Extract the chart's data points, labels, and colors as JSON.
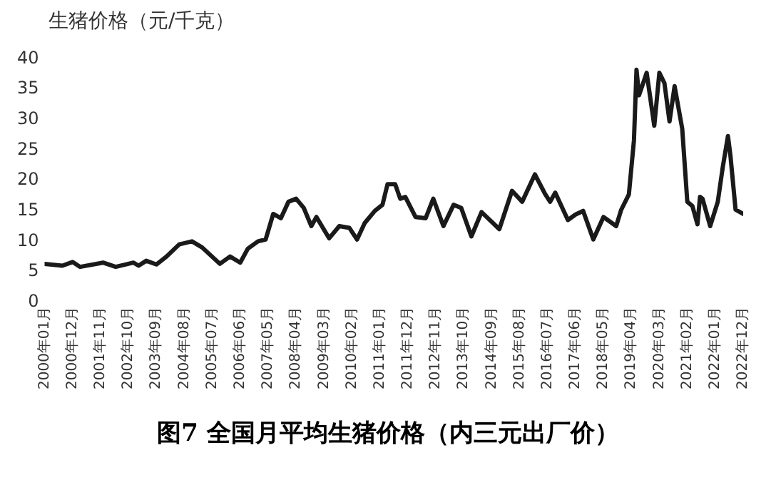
{
  "chart_data": {
    "type": "line",
    "title": "图7 全国月平均生猪价格（内三元出厂价）",
    "ylabel": "生猪价格（元/千克）",
    "x": [
      "2000-01",
      "2000-08",
      "2000-12",
      "2001-03",
      "2001-12",
      "2002-05",
      "2002-12",
      "2003-02",
      "2003-05",
      "2003-09",
      "2004-01",
      "2004-06",
      "2004-11",
      "2005-03",
      "2005-10",
      "2006-02",
      "2006-06",
      "2006-09",
      "2007-01",
      "2007-04",
      "2007-07",
      "2007-10",
      "2008-01",
      "2008-04",
      "2008-07",
      "2008-10",
      "2008-12",
      "2009-05",
      "2009-09",
      "2010-01",
      "2010-04",
      "2010-07",
      "2010-11",
      "2011-02",
      "2011-04",
      "2011-07",
      "2011-09",
      "2011-11",
      "2012-03",
      "2012-07",
      "2012-10",
      "2013-02",
      "2013-06",
      "2013-09",
      "2014-01",
      "2014-05",
      "2014-12",
      "2015-05",
      "2015-09",
      "2016-02",
      "2016-06",
      "2016-08",
      "2016-10",
      "2017-03",
      "2017-06",
      "2017-09",
      "2018-01",
      "2018-05",
      "2018-10",
      "2018-12",
      "2019-03",
      "2019-05",
      "2019-06",
      "2019-07",
      "2019-10",
      "2020-01",
      "2020-03",
      "2020-05",
      "2020-07",
      "2020-09",
      "2020-12",
      "2021-02",
      "2021-04",
      "2021-06",
      "2021-07",
      "2021-08",
      "2021-11",
      "2022-02",
      "2022-04",
      "2022-06",
      "2022-07",
      "2022-09",
      "2022-12"
    ],
    "series": [
      {
        "color": "#1a1a1a",
        "values": [
          6.3,
          6.0,
          6.6,
          5.8,
          6.5,
          5.8,
          6.5,
          6.0,
          6.8,
          6.2,
          7.5,
          9.5,
          10,
          9,
          6.3,
          7.5,
          6.5,
          8.8,
          10,
          10.3,
          14.5,
          13.8,
          16.5,
          17,
          15.5,
          12.5,
          14,
          10.5,
          12.5,
          12.2,
          10.3,
          13,
          15,
          16,
          19.4,
          19.4,
          17,
          17.3,
          14,
          13.8,
          17,
          12.5,
          16,
          15.5,
          10.8,
          14.8,
          12,
          18.3,
          16.5,
          21,
          17.8,
          16.5,
          18,
          13.5,
          14.4,
          15,
          10.3,
          14,
          12.5,
          15.2,
          17.7,
          26.6,
          38.2,
          34,
          37.7,
          29,
          37.7,
          36,
          29.7,
          35.5,
          28.5,
          16.5,
          15.8,
          12.8,
          17.3,
          17,
          12.5,
          16.5,
          22.3,
          27.3,
          24,
          15.2,
          14.5
        ]
      }
    ],
    "xlim": [
      "2000-01",
      "2022-12"
    ],
    "xticks": [
      {
        "value": "2000-01",
        "label": "2000年01月"
      },
      {
        "value": "2000-12",
        "label": "2000年12月"
      },
      {
        "value": "2001-11",
        "label": "2001年11月"
      },
      {
        "value": "2002-10",
        "label": "2002年10月"
      },
      {
        "value": "2003-09",
        "label": "2003年09月"
      },
      {
        "value": "2004-08",
        "label": "2004年08月"
      },
      {
        "value": "2005-07",
        "label": "2005年07月"
      },
      {
        "value": "2006-06",
        "label": "2006年06月"
      },
      {
        "value": "2007-05",
        "label": "2007年05月"
      },
      {
        "value": "2008-04",
        "label": "2008年04月"
      },
      {
        "value": "2009-03",
        "label": "2009年03月"
      },
      {
        "value": "2010-02",
        "label": "2010年02月"
      },
      {
        "value": "2011-01",
        "label": "2011年01月"
      },
      {
        "value": "2011-12",
        "label": "2011年12月"
      },
      {
        "value": "2012-11",
        "label": "2012年11月"
      },
      {
        "value": "2013-10",
        "label": "2013年10月"
      },
      {
        "value": "2014-09",
        "label": "2014年09月"
      },
      {
        "value": "2015-08",
        "label": "2015年08月"
      },
      {
        "value": "2016-07",
        "label": "2016年07月"
      },
      {
        "value": "2017-06",
        "label": "2017年06月"
      },
      {
        "value": "2018-05",
        "label": "2018年05月"
      },
      {
        "value": "2019-04",
        "label": "2019年04月"
      },
      {
        "value": "2020-03",
        "label": "2020年03月"
      },
      {
        "value": "2021-02",
        "label": "2021年02月"
      },
      {
        "value": "2022-01",
        "label": "2022年01月"
      },
      {
        "value": "2022-12",
        "label": "2022年12月"
      }
    ],
    "ylim": [
      0,
      40
    ],
    "yticks": [
      0,
      5,
      10,
      15,
      20,
      25,
      30,
      35,
      40
    ],
    "grid": false,
    "legend": false,
    "marker": "none",
    "line_style": "solid"
  }
}
